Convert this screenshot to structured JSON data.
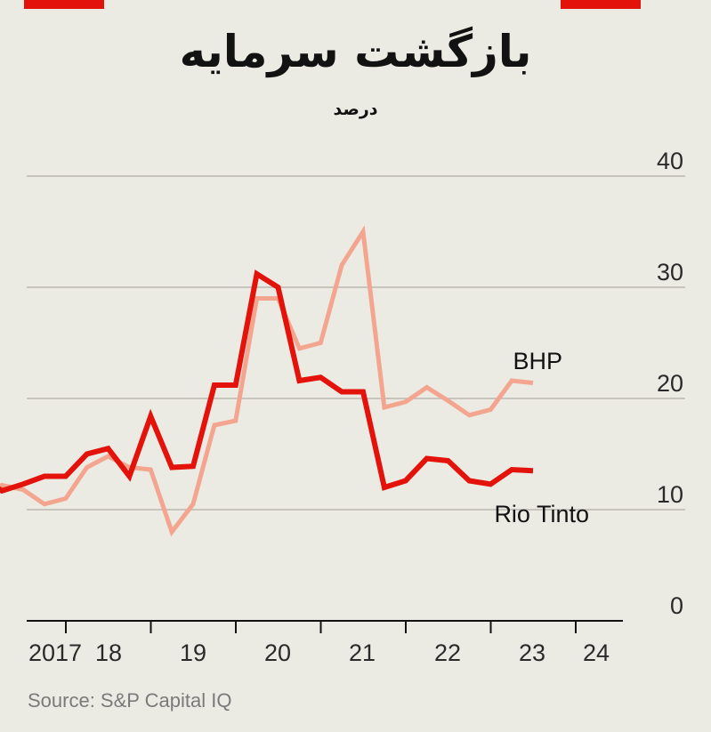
{
  "chart_data": {
    "type": "line",
    "title": "بازگشت سرمایه",
    "subtitle": "درصد",
    "source": "Source: S&P Capital IQ",
    "x_tick_labels": [
      "2017",
      "18",
      "19",
      "20",
      "21",
      "22",
      "23",
      "24"
    ],
    "ylim": [
      0,
      40
    ],
    "y_ticks": [
      0,
      10,
      20,
      30,
      40
    ],
    "grid": true,
    "colors": {
      "BHP": "#f4a58f",
      "Rio Tinto": "#e3120b"
    },
    "x": [
      2017.5,
      2017.75,
      2018.0,
      2018.25,
      2018.5,
      2018.75,
      2019.0,
      2019.25,
      2019.5,
      2019.75,
      2020.0,
      2020.25,
      2020.5,
      2020.75,
      2021.0,
      2021.25,
      2021.5,
      2021.75,
      2022.0,
      2022.25,
      2022.5,
      2022.75,
      2023.0,
      2023.25,
      2023.5,
      2023.75,
      2024.0,
      2024.25,
      2024.5
    ],
    "series": [
      {
        "name": "BHP",
        "values": [
          9.8,
          12.2,
          11.8,
          10.5,
          11.0,
          13.8,
          14.8,
          13.8,
          13.6,
          8.0,
          10.5,
          17.6,
          18.0,
          29.0,
          29.0,
          24.5,
          25.0,
          32.0,
          35.0,
          19.2,
          19.7,
          21.0,
          19.8,
          18.5,
          19.0,
          21.6,
          21.4,
          null,
          null
        ],
        "label_position": "right"
      },
      {
        "name": "Rio Tinto",
        "values": [
          13.0,
          11.7,
          12.3,
          13.0,
          13.0,
          15.0,
          15.5,
          13.0,
          18.4,
          13.8,
          13.9,
          21.2,
          21.2,
          31.2,
          30.0,
          21.6,
          21.9,
          20.6,
          20.6,
          12.0,
          12.6,
          14.6,
          14.4,
          12.6,
          12.3,
          13.6,
          13.5,
          null,
          null
        ],
        "label_position": "right"
      }
    ]
  }
}
